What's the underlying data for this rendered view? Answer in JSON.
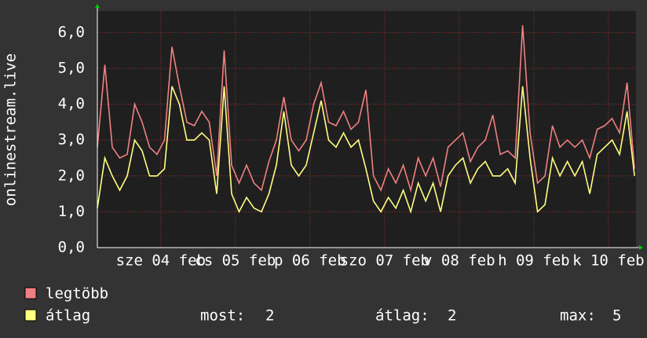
{
  "chart_data": {
    "type": "line",
    "y_label": "onlinestream.live",
    "xlim": [
      0,
      7.22
    ],
    "xticks": [
      {
        "value": 0.85,
        "label": "sze 04 feb"
      },
      {
        "value": 1.85,
        "label": "cs 05 feb"
      },
      {
        "value": 2.85,
        "label": "p 06 feb"
      },
      {
        "value": 3.85,
        "label": "szo 07 feb"
      },
      {
        "value": 4.85,
        "label": "v 08 feb"
      },
      {
        "value": 5.85,
        "label": "h 09 feb"
      },
      {
        "value": 6.85,
        "label": "k 10 feb"
      }
    ],
    "ylim": [
      0,
      6.6
    ],
    "yticks": [
      {
        "value": 0,
        "label": "0,0"
      },
      {
        "value": 1,
        "label": "1,0"
      },
      {
        "value": 2,
        "label": "2,0"
      },
      {
        "value": 3,
        "label": "3,0"
      },
      {
        "value": 4,
        "label": "4,0"
      },
      {
        "value": 5,
        "label": "5,0"
      },
      {
        "value": 6,
        "label": "6,0"
      }
    ],
    "grid": true,
    "x": [
      0,
      0.1,
      0.2,
      0.3,
      0.4,
      0.5,
      0.6,
      0.7,
      0.8,
      0.9,
      1.0,
      1.1,
      1.2,
      1.3,
      1.4,
      1.5,
      1.6,
      1.7,
      1.8,
      1.9,
      2.0,
      2.1,
      2.2,
      2.3,
      2.4,
      2.5,
      2.6,
      2.7,
      2.8,
      2.9,
      3.0,
      3.1,
      3.2,
      3.3,
      3.4,
      3.5,
      3.6,
      3.7,
      3.8,
      3.9,
      4.0,
      4.1,
      4.2,
      4.3,
      4.4,
      4.5,
      4.6,
      4.7,
      4.8,
      4.9,
      5.0,
      5.1,
      5.2,
      5.3,
      5.4,
      5.5,
      5.6,
      5.7,
      5.8,
      5.9,
      6.0,
      6.1,
      6.2,
      6.3,
      6.4,
      6.5,
      6.6,
      6.7,
      6.8,
      6.9,
      7.0,
      7.1,
      7.2
    ],
    "series": [
      {
        "name": "legtöbb",
        "color": "#f08080",
        "values": [
          2.8,
          5.1,
          2.8,
          2.5,
          2.6,
          4.0,
          3.5,
          2.8,
          2.6,
          3.0,
          5.6,
          4.5,
          3.5,
          3.4,
          3.8,
          3.5,
          2.0,
          5.5,
          2.3,
          1.8,
          2.3,
          1.8,
          1.6,
          2.4,
          3.0,
          4.2,
          3.0,
          2.7,
          3.0,
          4.0,
          4.6,
          3.5,
          3.4,
          3.8,
          3.3,
          3.5,
          4.4,
          2.0,
          1.6,
          2.2,
          1.8,
          2.3,
          1.6,
          2.5,
          2.0,
          2.5,
          1.7,
          2.8,
          3.0,
          3.2,
          2.4,
          2.8,
          3.0,
          3.7,
          2.6,
          2.7,
          2.5,
          6.2,
          3.2,
          1.8,
          2.0,
          3.4,
          2.8,
          3.0,
          2.8,
          3.0,
          2.5,
          3.3,
          3.4,
          3.6,
          3.2,
          4.6,
          2.2
        ]
      },
      {
        "name": "átlag",
        "color": "#ffff80",
        "values": [
          1.1,
          2.5,
          2.0,
          1.6,
          2.0,
          3.0,
          2.7,
          2.0,
          2.0,
          2.2,
          4.5,
          4.0,
          3.0,
          3.0,
          3.2,
          3.0,
          1.5,
          4.5,
          1.5,
          1.0,
          1.4,
          1.1,
          1.0,
          1.5,
          2.3,
          3.8,
          2.3,
          2.0,
          2.3,
          3.2,
          4.1,
          3.0,
          2.8,
          3.2,
          2.8,
          3.0,
          2.2,
          1.3,
          1.0,
          1.4,
          1.1,
          1.6,
          1.0,
          1.8,
          1.3,
          1.8,
          1.0,
          2.0,
          2.3,
          2.5,
          1.8,
          2.2,
          2.4,
          2.0,
          2.0,
          2.2,
          1.8,
          4.5,
          2.5,
          1.0,
          1.2,
          2.5,
          2.0,
          2.4,
          2.0,
          2.4,
          1.5,
          2.6,
          2.8,
          3.0,
          2.6,
          3.8,
          2.0
        ]
      }
    ],
    "stats": [
      {
        "label": "most:",
        "value": 2
      },
      {
        "label": "átlag:",
        "value": 2
      },
      {
        "label": "max:",
        "value": 5
      }
    ]
  }
}
